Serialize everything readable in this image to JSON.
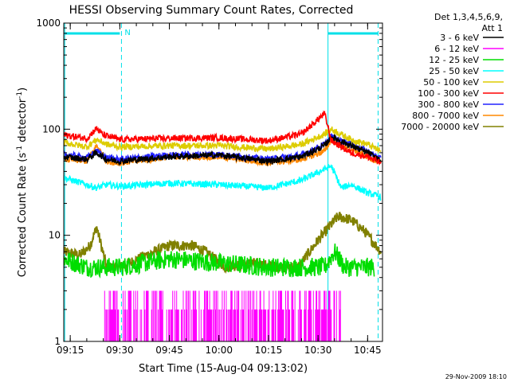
{
  "chart_data": {
    "type": "line",
    "title": "HESSI Observing Summary Count Rates, Corrected",
    "xlabel": "Start Time (15-Aug-04 09:13:02)",
    "ylabel": "Corrected Count Rate (s⁻¹ detector⁻¹)",
    "ylabel_parts": {
      "main": "Corrected Count Rate (s",
      "sup1": "-1",
      "mid": " detector",
      "sup2": "-1",
      "end": ")"
    },
    "y_scale": "log",
    "xlim": [
      "09:13:02",
      "10:49:30"
    ],
    "ylim": [
      1,
      1000
    ],
    "x_tick_labels": [
      "09:15",
      "09:30",
      "09:45",
      "10:00",
      "10:15",
      "10:30",
      "10:45"
    ],
    "y_tick_labels": [
      "1",
      "10",
      "100",
      "1000"
    ],
    "legend_title": [
      "Det 1,3,4,5,6,9,",
      "Att 1"
    ],
    "legend_placement": "right",
    "footer_date": "29-Nov-2009 18:10",
    "annotation_n": "N",
    "markers": {
      "solid": [
        "09:13:20",
        "10:33:00"
      ],
      "dashed": [
        "09:30:30",
        "10:48:10"
      ],
      "bars": [
        {
          "from": "09:13:20",
          "to": "09:30:00"
        },
        {
          "from": "10:33:00",
          "to": "10:48:10"
        }
      ],
      "color": "#00e0e8"
    },
    "series": [
      {
        "name": "3 - 6 keV",
        "color": "#000000",
        "x": [
          "09:13",
          "09:20",
          "09:23",
          "09:26",
          "09:30",
          "09:45",
          "10:00",
          "10:15",
          "10:25",
          "10:32",
          "10:34",
          "10:40",
          "10:45",
          "10:49"
        ],
        "y": [
          55,
          52,
          60,
          52,
          50,
          55,
          57,
          50,
          55,
          70,
          85,
          70,
          60,
          50
        ]
      },
      {
        "name": "6 - 12 keV",
        "color": "#ff00ff",
        "x": [
          "09:25",
          "09:35",
          "09:45",
          "09:55",
          "10:05",
          "10:15",
          "10:25",
          "10:30",
          "10:35",
          "10:37"
        ],
        "y": [
          2,
          2,
          2,
          2,
          2,
          2,
          2,
          2,
          2,
          2
        ]
      },
      {
        "name": "12 - 25 keV",
        "color": "#00dd00",
        "x": [
          "09:13",
          "09:20",
          "09:30",
          "09:45",
          "10:00",
          "10:15",
          "10:25",
          "10:32",
          "10:35",
          "10:38",
          "10:47"
        ],
        "y": [
          6,
          5,
          5,
          6,
          5.5,
          5,
          5,
          5,
          7,
          5,
          5
        ]
      },
      {
        "name": "25 - 50 keV",
        "color": "#00ffff",
        "x": [
          "09:13",
          "09:20",
          "09:23",
          "09:26",
          "09:30",
          "09:45",
          "10:00",
          "10:15",
          "10:25",
          "10:32",
          "10:34",
          "10:37",
          "10:40",
          "10:45",
          "10:49"
        ],
        "y": [
          35,
          30,
          28,
          30,
          29,
          31,
          30,
          28,
          33,
          42,
          45,
          28,
          30,
          25,
          23
        ]
      },
      {
        "name": "50 - 100 keV",
        "color": "#ddcc00",
        "x": [
          "09:13",
          "09:20",
          "09:23",
          "09:26",
          "09:30",
          "09:45",
          "10:00",
          "10:15",
          "10:25",
          "10:32",
          "10:34",
          "10:40",
          "10:45",
          "10:49"
        ],
        "y": [
          75,
          68,
          80,
          72,
          68,
          70,
          70,
          65,
          72,
          90,
          100,
          80,
          72,
          62
        ]
      },
      {
        "name": "100 - 300 keV",
        "color": "#ff0000",
        "x": [
          "09:13",
          "09:20",
          "09:23",
          "09:25",
          "09:30",
          "09:45",
          "10:00",
          "10:15",
          "10:25",
          "10:32",
          "10:34",
          "10:40",
          "10:45",
          "10:49"
        ],
        "y": [
          88,
          82,
          102,
          88,
          80,
          82,
          83,
          78,
          90,
          140,
          78,
          60,
          55,
          48
        ]
      },
      {
        "name": "300 - 800 keV",
        "color": "#2222ff",
        "x": [
          "09:13",
          "09:20",
          "09:23",
          "09:26",
          "09:30",
          "09:45",
          "10:00",
          "10:15",
          "10:25",
          "10:32",
          "10:34",
          "10:40",
          "10:45",
          "10:49"
        ],
        "y": [
          58,
          54,
          62,
          54,
          52,
          57,
          58,
          52,
          57,
          72,
          85,
          72,
          62,
          52
        ]
      },
      {
        "name": "800 - 7000 keV",
        "color": "#ff8800",
        "x": [
          "09:13",
          "09:20",
          "09:23",
          "09:26",
          "09:30",
          "09:45",
          "10:00",
          "10:15",
          "10:25",
          "10:32",
          "10:34",
          "10:40",
          "10:45",
          "10:49"
        ],
        "y": [
          52,
          50,
          70,
          50,
          48,
          55,
          55,
          48,
          52,
          62,
          80,
          65,
          55,
          48
        ]
      },
      {
        "name": "7000 - 20000 keV",
        "color": "#808000",
        "x": [
          "09:13",
          "09:18",
          "09:21",
          "09:23",
          "09:26",
          "09:30",
          "09:38",
          "09:45",
          "09:52",
          "09:56",
          "10:02",
          "10:10",
          "10:18",
          "10:24",
          "10:30",
          "10:36",
          "10:40",
          "10:44",
          "10:49"
        ],
        "y": [
          7,
          6.5,
          8,
          12,
          5,
          5,
          6.5,
          8,
          8,
          7,
          5,
          5.5,
          5,
          5,
          9,
          15,
          14,
          11,
          7
        ]
      }
    ]
  }
}
